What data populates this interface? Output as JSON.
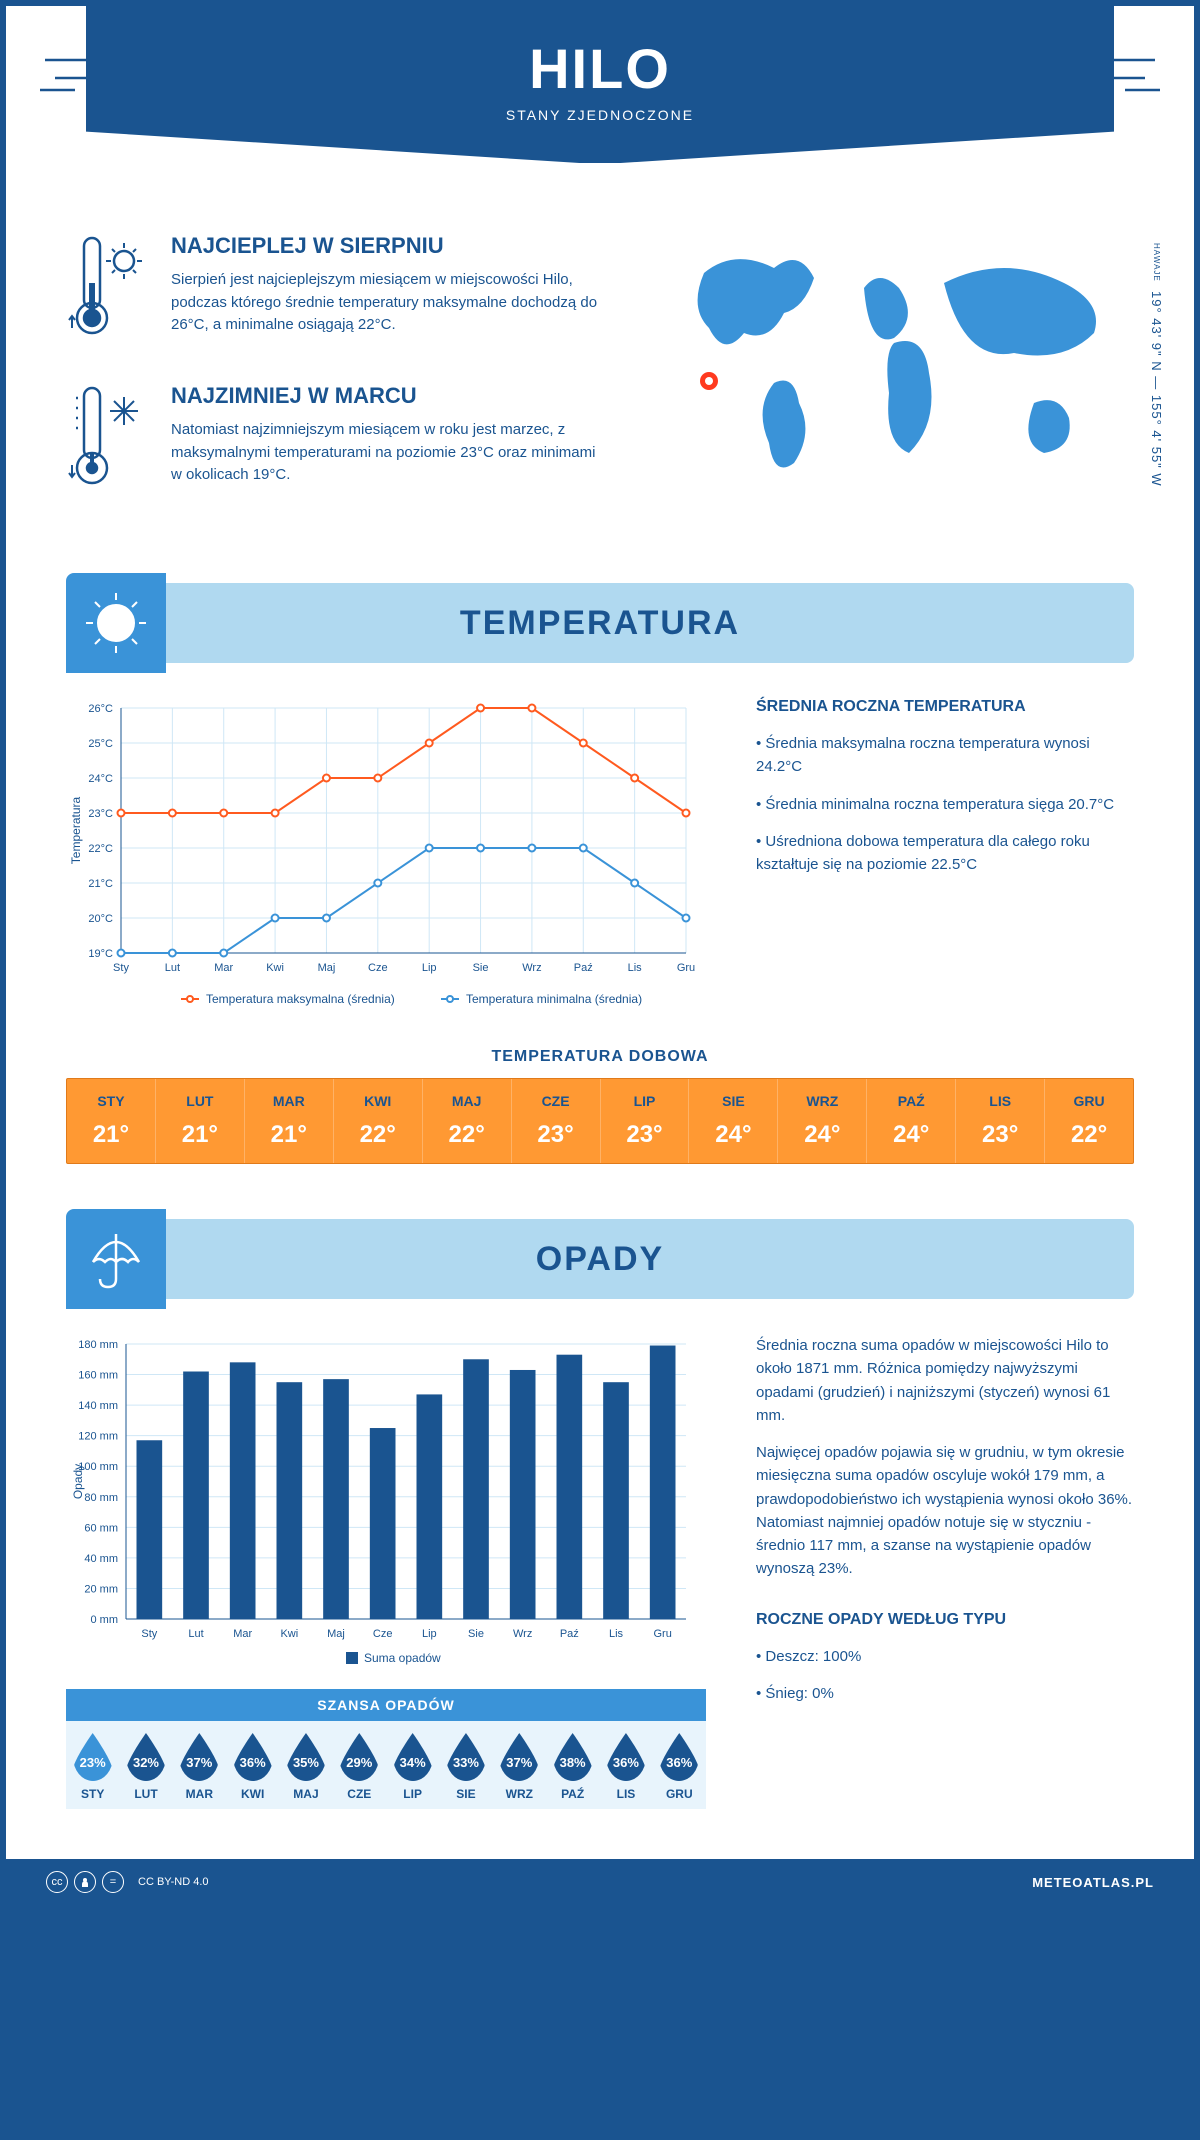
{
  "header": {
    "title": "HILO",
    "subtitle": "STANY ZJEDNOCZONE"
  },
  "coords": {
    "lat": "19° 43' 9\" N",
    "lon": "155° 4' 55\" W",
    "region": "HAWAJE"
  },
  "facts": {
    "warm": {
      "title": "NAJCIEPLEJ W SIERPNIU",
      "text": "Sierpień jest najcieplejszym miesiącem w miejscowości Hilo, podczas którego średnie temperatury maksymalne dochodzą do 26°C, a minimalne osiągają 22°C."
    },
    "cold": {
      "title": "NAJZIMNIEJ W MARCU",
      "text": "Natomiast najzimniejszym miesiącem w roku jest marzec, z maksymalnymi temperaturami na poziomie 23°C oraz minimami w okolicach 19°C."
    }
  },
  "sections": {
    "temp": "TEMPERATURA",
    "rain": "OPADY"
  },
  "months": [
    "Sty",
    "Lut",
    "Mar",
    "Kwi",
    "Maj",
    "Cze",
    "Lip",
    "Sie",
    "Wrz",
    "Paź",
    "Lis",
    "Gru"
  ],
  "months_upper": [
    "STY",
    "LUT",
    "MAR",
    "KWI",
    "MAJ",
    "CZE",
    "LIP",
    "SIE",
    "WRZ",
    "PAŹ",
    "LIS",
    "GRU"
  ],
  "temp_chart": {
    "type": "line",
    "ylabel": "Temperatura",
    "ylim": [
      19,
      26
    ],
    "ytick_step": 1,
    "max_series": [
      23,
      23,
      23,
      23,
      24,
      24,
      25,
      26,
      26,
      25,
      24,
      23
    ],
    "min_series": [
      19,
      19,
      19,
      20,
      20,
      21,
      22,
      22,
      22,
      22,
      21,
      20
    ],
    "max_color": "#ff5a1f",
    "min_color": "#3a93d8",
    "grid_color": "#cfe7f6",
    "legend_max": "Temperatura maksymalna (średnia)",
    "legend_min": "Temperatura minimalna (średnia)"
  },
  "temp_info": {
    "title": "ŚREDNIA ROCZNA TEMPERATURA",
    "b1": "• Średnia maksymalna roczna temperatura wynosi 24.2°C",
    "b2": "• Średnia minimalna roczna temperatura sięga 20.7°C",
    "b3": "• Uśredniona dobowa temperatura dla całego roku kształtuje się na poziomie 22.5°C"
  },
  "daily_temp": {
    "title": "TEMPERATURA DOBOWA",
    "values": [
      "21°",
      "21°",
      "21°",
      "22°",
      "22°",
      "23°",
      "23°",
      "24°",
      "24°",
      "24°",
      "23°",
      "22°"
    ],
    "bg_color": "#ff9933",
    "header_color": "#1a5490",
    "value_color": "#ffffff"
  },
  "rain_chart": {
    "type": "bar",
    "ylabel": "Opady",
    "ylim": [
      0,
      180
    ],
    "ytick_step": 20,
    "values": [
      117,
      162,
      168,
      155,
      157,
      125,
      147,
      170,
      163,
      173,
      155,
      179
    ],
    "bar_color": "#1a5490",
    "grid_color": "#cfe7f6",
    "legend": "Suma opadów",
    "bar_width": 0.55
  },
  "rain_info": {
    "p1": "Średnia roczna suma opadów w miejscowości Hilo to około 1871 mm. Różnica pomiędzy najwyższymi opadami (grudzień) i najniższymi (styczeń) wynosi 61 mm.",
    "p2": "Najwięcej opadów pojawia się w grudniu, w tym okresie miesięczna suma opadów oscyluje wokół 179 mm, a prawdopodobieństwo ich wystąpienia wynosi około 36%. Natomiast najmniej opadów notuje się w styczniu - średnio 117 mm, a szanse na wystąpienie opadów wynoszą 23%."
  },
  "rain_type": {
    "title": "ROCZNE OPADY WEDŁUG TYPU",
    "b1": "• Deszcz: 100%",
    "b2": "• Śnieg: 0%"
  },
  "chance": {
    "title": "SZANSA OPADÓW",
    "values": [
      "23%",
      "32%",
      "37%",
      "36%",
      "35%",
      "29%",
      "34%",
      "33%",
      "37%",
      "38%",
      "36%",
      "36%"
    ],
    "light_indices": [
      0
    ]
  },
  "footer": {
    "license": "CC BY-ND 4.0",
    "site": "METEOATLAS.PL"
  }
}
